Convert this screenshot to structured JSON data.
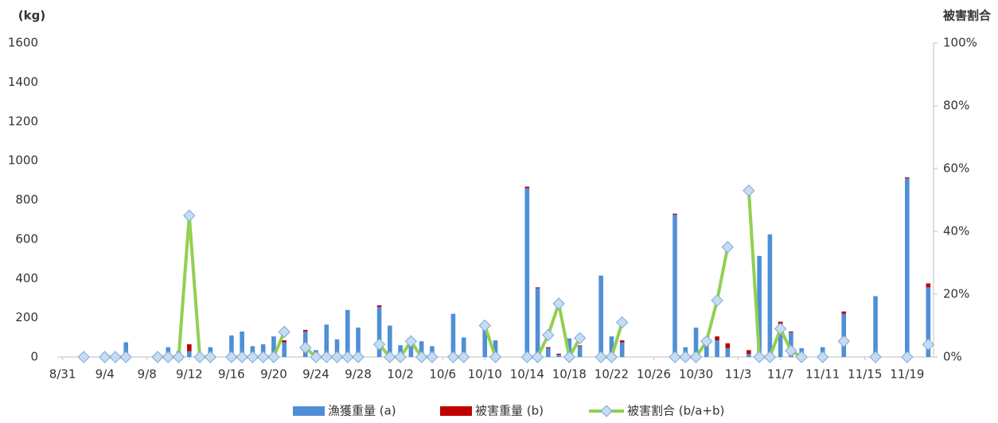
{
  "chart_data": {
    "type": "bar",
    "ylabel": "(kg)",
    "y2label": "被害割合",
    "categories": [
      "8/31",
      null,
      null,
      null,
      "9/4",
      null,
      null,
      null,
      "9/8",
      null,
      null,
      null,
      "9/12",
      null,
      null,
      null,
      "9/16",
      null,
      null,
      null,
      "9/20",
      null,
      null,
      null,
      "9/24",
      null,
      null,
      null,
      "9/28",
      null,
      null,
      null,
      "10/2",
      null,
      null,
      null,
      "10/6",
      null,
      null,
      null,
      "10/10",
      null,
      null,
      null,
      "10/14",
      null,
      null,
      null,
      "10/18",
      null,
      null,
      null,
      "10/22",
      null,
      null,
      null,
      "10/26",
      null,
      null,
      null,
      "10/30",
      null,
      null,
      null,
      "11/3",
      null,
      null,
      null,
      "11/7",
      null,
      null,
      null,
      "11/11",
      null,
      null,
      null,
      "11/15",
      null,
      null,
      null,
      "11/19",
      null,
      null
    ],
    "series": [
      {
        "name": "漁獲重量 (a)",
        "color": "#4f8fd6",
        "values": [
          null,
          null,
          null,
          null,
          null,
          null,
          75,
          null,
          null,
          null,
          50,
          30,
          30,
          null,
          50,
          null,
          110,
          130,
          55,
          65,
          105,
          75,
          null,
          130,
          35,
          165,
          90,
          240,
          150,
          null,
          255,
          160,
          60,
          70,
          80,
          55,
          null,
          220,
          100,
          null,
          140,
          85,
          null,
          null,
          860,
          350,
          45,
          12,
          95,
          55,
          null,
          415,
          105,
          75,
          null,
          null,
          null,
          null,
          725,
          50,
          150,
          95,
          85,
          45,
          null,
          15,
          515,
          625,
          165,
          125,
          45,
          null,
          50,
          null,
          220,
          null,
          null,
          310,
          null,
          null,
          910,
          null,
          355
        ]
      },
      {
        "name": "被害重量 (b)",
        "color": "#c00000",
        "values": [
          null,
          null,
          null,
          null,
          null,
          null,
          null,
          null,
          null,
          null,
          null,
          null,
          35,
          null,
          null,
          null,
          null,
          null,
          null,
          null,
          null,
          10,
          null,
          8,
          null,
          null,
          null,
          null,
          null,
          null,
          8,
          null,
          null,
          null,
          null,
          null,
          null,
          null,
          null,
          null,
          null,
          null,
          null,
          null,
          8,
          5,
          5,
          5,
          null,
          4,
          null,
          null,
          null,
          10,
          null,
          null,
          null,
          null,
          5,
          null,
          null,
          5,
          20,
          25,
          null,
          20,
          null,
          null,
          15,
          5,
          null,
          null,
          null,
          null,
          12,
          null,
          null,
          null,
          null,
          null,
          5,
          null,
          20
        ]
      },
      {
        "name": "被害割合 (b/a+b)",
        "color": "#92d050",
        "type": "line",
        "axis": "y2",
        "values": [
          null,
          null,
          0,
          null,
          0,
          0,
          0,
          null,
          null,
          0,
          0,
          0,
          45,
          0,
          0,
          null,
          0,
          0,
          0,
          0,
          0,
          8,
          null,
          3,
          0,
          0,
          0,
          0,
          0,
          null,
          4,
          0,
          0,
          5,
          0,
          0,
          null,
          0,
          0,
          null,
          10,
          0,
          null,
          null,
          0,
          0,
          7,
          17,
          0,
          6,
          null,
          0,
          0,
          11,
          null,
          null,
          null,
          null,
          0,
          0,
          0,
          5,
          18,
          35,
          null,
          53,
          0,
          0,
          9,
          2,
          0,
          null,
          0,
          null,
          5,
          null,
          null,
          0,
          null,
          null,
          0,
          null,
          4
        ]
      }
    ],
    "ylim": [
      0,
      1600
    ],
    "yticks": [
      0,
      200,
      400,
      600,
      800,
      1000,
      1200,
      1400,
      1600
    ],
    "y2lim": [
      0,
      100
    ],
    "y2ticks": [
      {
        "value": 0,
        "label": "0%"
      },
      {
        "value": 20,
        "label": "20%"
      },
      {
        "value": 40,
        "label": "40%"
      },
      {
        "value": 60,
        "label": "60%"
      },
      {
        "value": 80,
        "label": "80%"
      },
      {
        "value": 100,
        "label": "100%"
      }
    ],
    "stacked": true,
    "grid": false,
    "legend": "bottom"
  }
}
